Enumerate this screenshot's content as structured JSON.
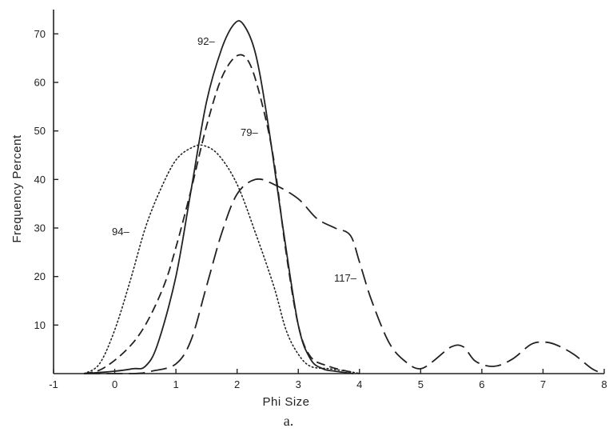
{
  "chart_data": {
    "type": "line",
    "title": "",
    "xlabel": "Phi Size",
    "ylabel": "Frequency Percent",
    "caption": "a.",
    "xlim": [
      -1,
      8
    ],
    "ylim": [
      0,
      75
    ],
    "xticks": [
      -1,
      0,
      1,
      2,
      3,
      4,
      5,
      6,
      7,
      8
    ],
    "yticks": [
      10,
      20,
      30,
      40,
      50,
      60,
      70
    ],
    "grid": false,
    "series": [
      {
        "name": "92",
        "label_text": "92–",
        "style": "solid",
        "x": [
          -0.5,
          0.0,
          0.3,
          0.5,
          0.7,
          1.0,
          1.25,
          1.5,
          1.75,
          1.95,
          2.1,
          2.3,
          2.5,
          2.75,
          3.0,
          3.2,
          3.4,
          3.6,
          3.9
        ],
        "y": [
          0,
          0.5,
          1.0,
          1.5,
          6,
          20,
          38,
          56,
          67,
          72,
          72,
          66,
          52,
          30,
          10,
          3,
          1,
          0.5,
          0
        ]
      },
      {
        "name": "79",
        "label_text": "79–",
        "style": "dashed",
        "x": [
          -0.5,
          -0.2,
          0.2,
          0.5,
          0.8,
          1.0,
          1.25,
          1.5,
          1.75,
          2.0,
          2.2,
          2.4,
          2.6,
          2.8,
          3.0,
          3.2,
          3.5,
          3.8,
          4.0
        ],
        "y": [
          0,
          1,
          5,
          10,
          18,
          26,
          38,
          51,
          61,
          65.5,
          64,
          56,
          44,
          25,
          10,
          3.5,
          1.5,
          0.5,
          0
        ]
      },
      {
        "name": "94",
        "label_text": "94–",
        "style": "dotted",
        "x": [
          -0.5,
          -0.25,
          0.0,
          0.25,
          0.5,
          0.75,
          1.0,
          1.25,
          1.45,
          1.7,
          2.0,
          2.3,
          2.6,
          2.8,
          3.0,
          3.2,
          3.5,
          3.8,
          4.0
        ],
        "y": [
          0,
          2,
          9,
          19,
          30,
          38,
          44,
          46.5,
          47,
          45,
          39,
          29,
          18,
          9,
          4,
          1.5,
          1,
          0.5,
          0
        ]
      },
      {
        "name": "117",
        "label_text": "117–",
        "style": "longdash",
        "x": [
          -0.5,
          0.3,
          0.6,
          1.0,
          1.25,
          1.5,
          1.75,
          2.0,
          2.3,
          2.6,
          3.0,
          3.3,
          3.6,
          3.85,
          4.0,
          4.2,
          4.5,
          4.8,
          5.0,
          5.2,
          5.5,
          5.7,
          5.9,
          6.2,
          6.5,
          6.8,
          7.0,
          7.2,
          7.5,
          7.8,
          8.0
        ],
        "y": [
          0,
          0,
          0.5,
          2,
          7,
          18,
          29,
          37,
          40,
          39,
          36,
          32,
          30,
          28.5,
          23,
          15,
          6,
          2,
          1,
          2.5,
          5.5,
          5.5,
          2.5,
          1.5,
          3,
          6,
          6.5,
          6,
          4,
          1,
          0
        ]
      }
    ]
  }
}
